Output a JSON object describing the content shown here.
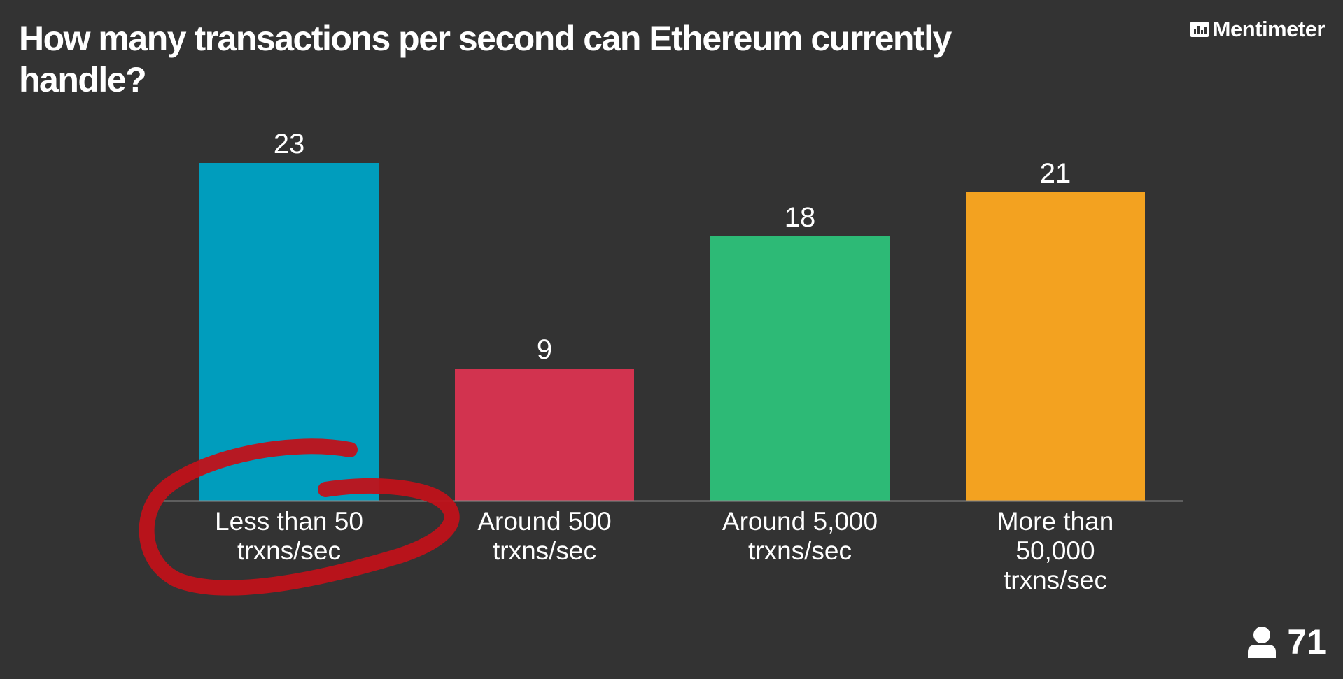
{
  "question": "How many transactions per second can Ethereum currently handle?",
  "brand": "Mentimeter",
  "participants": {
    "count": "71",
    "icon": "person-icon"
  },
  "annotation": {
    "type": "hand-drawn circle",
    "target": "Less than 50 trxns/sec",
    "color": "#c0121a"
  },
  "chart_data": {
    "type": "bar",
    "title": "How many transactions per second can Ethereum currently handle?",
    "categories": [
      "Less than 50 trxns/sec",
      "Around 500 trxns/sec",
      "Around 5,000 trxns/sec",
      "More than 50,000 trxns/sec"
    ],
    "category_lines": [
      [
        "Less than 50",
        "trxns/sec"
      ],
      [
        "Around 500",
        "trxns/sec"
      ],
      [
        "Around 5,000",
        "trxns/sec"
      ],
      [
        "More than",
        "50,000",
        "trxns/sec"
      ]
    ],
    "values": [
      23,
      9,
      18,
      21
    ],
    "colors": [
      "#009dbd",
      "#d2334f",
      "#2dba76",
      "#f3a220"
    ],
    "xlabel": "",
    "ylabel": "",
    "grid": false,
    "legend": "none"
  }
}
